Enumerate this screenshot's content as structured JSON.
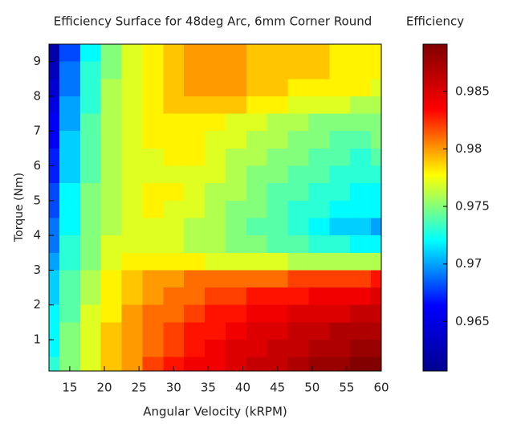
{
  "chart_data": {
    "type": "contour",
    "title": "Efficiency Surface for 48deg Arc, 6mm Corner Round",
    "colorbar_label": "Efficiency",
    "xlabel": "Angular Velocity (kRPM)",
    "ylabel": "Torque (Nm)",
    "xlim": [
      12,
      60
    ],
    "xticks": [
      15,
      20,
      25,
      30,
      35,
      40,
      45,
      50,
      55,
      60
    ],
    "ylim": [
      0.1,
      9.5
    ],
    "yticks": [
      1,
      2,
      3,
      4,
      5,
      6,
      7,
      8,
      9
    ],
    "zlim": [
      0.9607,
      0.9891
    ],
    "zticks": [
      0.965,
      0.97,
      0.975,
      0.98,
      0.985
    ],
    "colormap": [
      "#00008f",
      "#0000ff",
      "#00ffff",
      "#ffff00",
      "#ff0000",
      "#800000"
    ],
    "x": [
      12,
      15,
      18,
      21,
      24,
      27,
      30,
      33,
      36,
      39,
      42,
      45,
      48,
      51,
      54,
      57,
      60
    ],
    "y": [
      9.25,
      8.75,
      8.25,
      7.75,
      7.25,
      6.75,
      6.25,
      5.75,
      5.25,
      4.75,
      4.25,
      3.75,
      3.25,
      2.75,
      2.25,
      1.75,
      1.25,
      0.75,
      0.25
    ],
    "z": [
      [
        0.962,
        0.968,
        0.972,
        0.975,
        0.977,
        0.978,
        0.979,
        0.98,
        0.98,
        0.98,
        0.979,
        0.979,
        0.979,
        0.979,
        0.978,
        0.978,
        0.978
      ],
      [
        0.963,
        0.969,
        0.973,
        0.975,
        0.977,
        0.978,
        0.979,
        0.98,
        0.98,
        0.98,
        0.979,
        0.979,
        0.979,
        0.979,
        0.978,
        0.978,
        0.978
      ],
      [
        0.964,
        0.969,
        0.973,
        0.976,
        0.977,
        0.978,
        0.979,
        0.98,
        0.98,
        0.98,
        0.979,
        0.979,
        0.978,
        0.978,
        0.978,
        0.978,
        0.977
      ],
      [
        0.965,
        0.97,
        0.973,
        0.976,
        0.977,
        0.978,
        0.979,
        0.979,
        0.979,
        0.979,
        0.978,
        0.978,
        0.977,
        0.977,
        0.977,
        0.976,
        0.976
      ],
      [
        0.966,
        0.97,
        0.974,
        0.976,
        0.977,
        0.978,
        0.978,
        0.978,
        0.978,
        0.977,
        0.977,
        0.976,
        0.976,
        0.975,
        0.975,
        0.975,
        0.975
      ],
      [
        0.966,
        0.971,
        0.974,
        0.976,
        0.977,
        0.978,
        0.978,
        0.978,
        0.977,
        0.977,
        0.976,
        0.976,
        0.975,
        0.975,
        0.974,
        0.974,
        0.975
      ],
      [
        0.967,
        0.971,
        0.974,
        0.976,
        0.977,
        0.977,
        0.978,
        0.978,
        0.977,
        0.976,
        0.976,
        0.975,
        0.975,
        0.974,
        0.974,
        0.973,
        0.974
      ],
      [
        0.967,
        0.971,
        0.974,
        0.976,
        0.977,
        0.977,
        0.977,
        0.977,
        0.977,
        0.976,
        0.975,
        0.975,
        0.974,
        0.974,
        0.973,
        0.973,
        0.973
      ],
      [
        0.968,
        0.972,
        0.975,
        0.976,
        0.977,
        0.978,
        0.978,
        0.977,
        0.976,
        0.976,
        0.975,
        0.974,
        0.974,
        0.973,
        0.973,
        0.972,
        0.972
      ],
      [
        0.968,
        0.972,
        0.975,
        0.976,
        0.977,
        0.978,
        0.977,
        0.977,
        0.976,
        0.975,
        0.975,
        0.974,
        0.973,
        0.973,
        0.972,
        0.972,
        0.972
      ],
      [
        0.969,
        0.972,
        0.975,
        0.976,
        0.977,
        0.977,
        0.977,
        0.976,
        0.976,
        0.975,
        0.974,
        0.974,
        0.973,
        0.972,
        0.971,
        0.971,
        0.97
      ],
      [
        0.969,
        0.973,
        0.975,
        0.977,
        0.977,
        0.977,
        0.977,
        0.976,
        0.976,
        0.975,
        0.975,
        0.974,
        0.974,
        0.973,
        0.973,
        0.972,
        0.972
      ],
      [
        0.97,
        0.973,
        0.975,
        0.977,
        0.978,
        0.978,
        0.978,
        0.978,
        0.977,
        0.977,
        0.977,
        0.977,
        0.976,
        0.976,
        0.976,
        0.976,
        0.976
      ],
      [
        0.971,
        0.974,
        0.976,
        0.978,
        0.979,
        0.98,
        0.98,
        0.981,
        0.981,
        0.981,
        0.981,
        0.981,
        0.982,
        0.982,
        0.982,
        0.982,
        0.983
      ],
      [
        0.971,
        0.974,
        0.976,
        0.978,
        0.979,
        0.98,
        0.981,
        0.981,
        0.982,
        0.982,
        0.983,
        0.983,
        0.983,
        0.984,
        0.984,
        0.984,
        0.985
      ],
      [
        0.972,
        0.974,
        0.977,
        0.978,
        0.98,
        0.981,
        0.981,
        0.982,
        0.983,
        0.983,
        0.984,
        0.984,
        0.985,
        0.985,
        0.985,
        0.986,
        0.986
      ],
      [
        0.972,
        0.975,
        0.977,
        0.979,
        0.98,
        0.981,
        0.982,
        0.983,
        0.983,
        0.984,
        0.985,
        0.985,
        0.986,
        0.986,
        0.987,
        0.987,
        0.987
      ],
      [
        0.972,
        0.975,
        0.977,
        0.979,
        0.98,
        0.981,
        0.982,
        0.983,
        0.984,
        0.985,
        0.985,
        0.986,
        0.986,
        0.987,
        0.987,
        0.988,
        0.988
      ],
      [
        0.973,
        0.975,
        0.977,
        0.979,
        0.98,
        0.982,
        0.983,
        0.984,
        0.984,
        0.985,
        0.986,
        0.986,
        0.987,
        0.988,
        0.988,
        0.989,
        0.989
      ]
    ]
  }
}
